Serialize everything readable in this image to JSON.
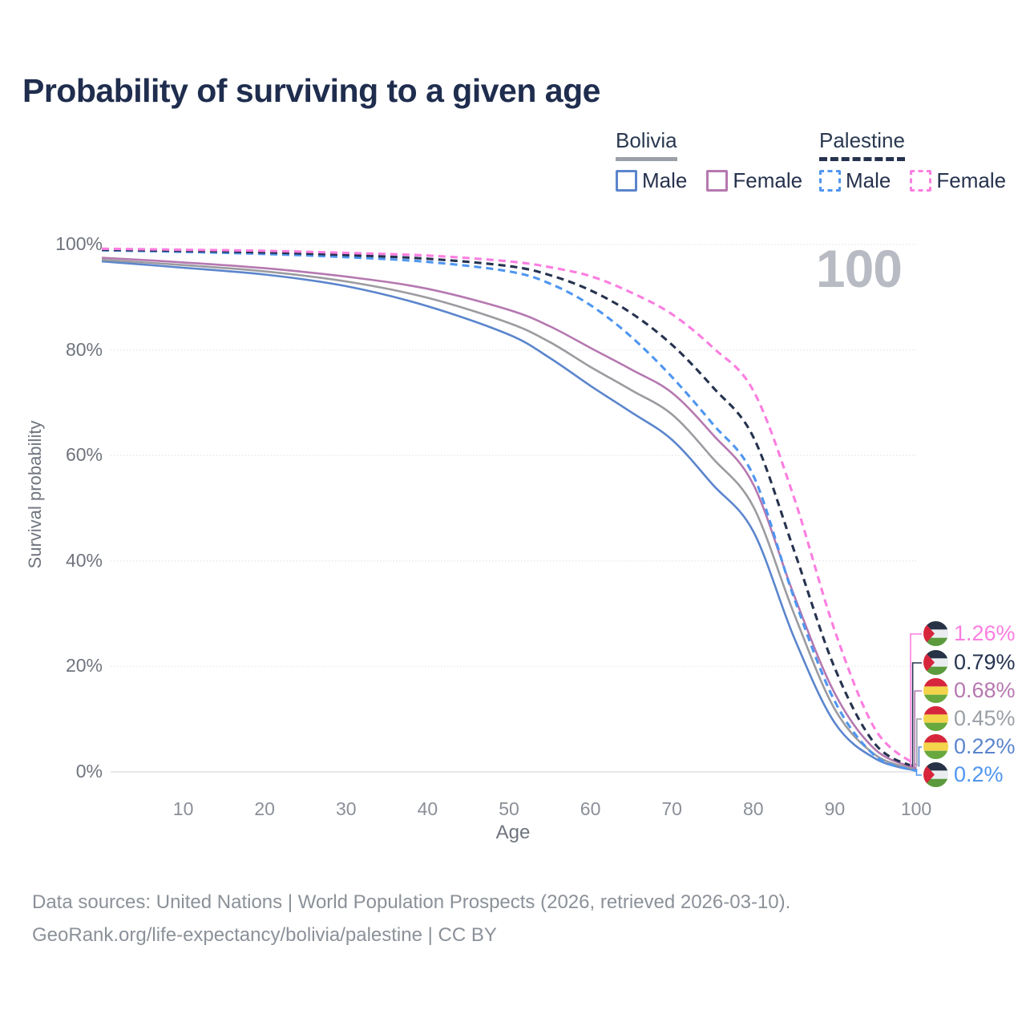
{
  "title": "Probability of surviving to a given age",
  "legend": {
    "groups": [
      {
        "label": "Bolivia",
        "line_style": "solid",
        "underline_color": "#9aa0a6",
        "items": [
          {
            "label": "Male",
            "color": "#5b85cd"
          },
          {
            "label": "Female",
            "color": "#b578b0"
          }
        ]
      },
      {
        "label": "Palestine",
        "line_style": "dashed",
        "underline_color": "#26334f",
        "items": [
          {
            "label": "Male",
            "color": "#4f96f0"
          },
          {
            "label": "Female",
            "color": "#fb7ee0"
          }
        ]
      }
    ]
  },
  "y_axis": {
    "title": "Survival probability",
    "ticks": [
      "0%",
      "20%",
      "40%",
      "60%",
      "80%",
      "100%"
    ],
    "tick_values": [
      0,
      20,
      40,
      60,
      80,
      100
    ]
  },
  "x_axis": {
    "title": "Age",
    "ticks": [
      "10",
      "20",
      "30",
      "40",
      "50",
      "60",
      "70",
      "80",
      "90",
      "100"
    ],
    "tick_values": [
      10,
      20,
      30,
      40,
      50,
      60,
      70,
      80,
      90,
      100
    ]
  },
  "hover_age_label": "100",
  "end_labels": [
    {
      "flag": "palestine",
      "value": "1.26%",
      "color": "#fb7ee0",
      "series": "Palestine Female"
    },
    {
      "flag": "palestine",
      "value": "0.79%",
      "color": "#26334f",
      "series": "Palestine (both sexes)"
    },
    {
      "flag": "bolivia",
      "value": "0.68%",
      "color": "#b578b0",
      "series": "Bolivia Female"
    },
    {
      "flag": "bolivia",
      "value": "0.45%",
      "color": "#9aa0a6",
      "series": "Bolivia (both sexes)"
    },
    {
      "flag": "bolivia",
      "value": "0.22%",
      "color": "#5b85cd",
      "series": "Bolivia Male"
    },
    {
      "flag": "palestine",
      "value": "0.2%",
      "color": "#4f96f0",
      "series": "Palestine Male"
    }
  ],
  "footer": {
    "line1": "Data sources: United Nations | World Population Prospects (2026, retrieved 2026-03-10).",
    "line2": "GeoRank.org/life-expectancy/bolivia/palestine | CC BY"
  },
  "chart_data": {
    "type": "line",
    "title": "Probability of surviving to a given age",
    "xlabel": "Age",
    "ylabel": "Survival probability",
    "xlim": [
      0,
      100
    ],
    "ylim": [
      0,
      100
    ],
    "grid": "horizontal",
    "legend_position": "top-right",
    "x": [
      0,
      10,
      20,
      30,
      40,
      50,
      55,
      60,
      65,
      70,
      75,
      80,
      85,
      90,
      95,
      100
    ],
    "series": [
      {
        "name": "Bolivia Male",
        "country": "Bolivia",
        "sex": "male",
        "color": "#5b85cd",
        "dash": false,
        "values": [
          96.8,
          95.6,
          94.3,
          92.1,
          88.3,
          82.9,
          78.5,
          73.2,
          68.2,
          63.0,
          54.5,
          45.6,
          25.5,
          9.3,
          2.5,
          0.22
        ]
      },
      {
        "name": "Bolivia (both sexes)",
        "country": "Bolivia",
        "sex": "both",
        "color": "#9b9ba0",
        "dash": false,
        "values": [
          97.1,
          96.1,
          94.9,
          93.0,
          89.9,
          85.1,
          81.5,
          76.8,
          72.4,
          67.8,
          59.5,
          50.3,
          30.0,
          11.9,
          3.2,
          0.45
        ]
      },
      {
        "name": "Bolivia Female",
        "country": "Bolivia",
        "sex": "female",
        "color": "#b578b0",
        "dash": false,
        "values": [
          97.5,
          96.6,
          95.5,
          93.9,
          91.6,
          87.6,
          84.5,
          80.4,
          76.3,
          71.9,
          64.0,
          54.5,
          33.5,
          14.9,
          4.2,
          0.68
        ]
      },
      {
        "name": "Palestine Male",
        "country": "Palestine",
        "sex": "male",
        "color": "#4f96f0",
        "dash": true,
        "values": [
          98.9,
          98.6,
          98.2,
          97.6,
          96.7,
          94.9,
          92.6,
          88.5,
          82.5,
          74.9,
          66.0,
          56.2,
          33.0,
          13.4,
          3.0,
          0.2
        ]
      },
      {
        "name": "Palestine (both sexes)",
        "country": "Palestine",
        "sex": "both",
        "color": "#26334f",
        "dash": true,
        "values": [
          99.0,
          98.8,
          98.5,
          98.0,
          97.3,
          95.9,
          94.2,
          91.3,
          87.0,
          81.0,
          73.0,
          63.5,
          42.0,
          19.7,
          5.2,
          0.79
        ]
      },
      {
        "name": "Palestine Female",
        "country": "Palestine",
        "sex": "female",
        "color": "#fb7ee0",
        "dash": true,
        "values": [
          99.2,
          99.0,
          98.8,
          98.4,
          97.9,
          96.8,
          95.7,
          94.0,
          90.9,
          86.8,
          80.5,
          72.3,
          52.0,
          26.8,
          8.0,
          1.26
        ]
      }
    ]
  }
}
